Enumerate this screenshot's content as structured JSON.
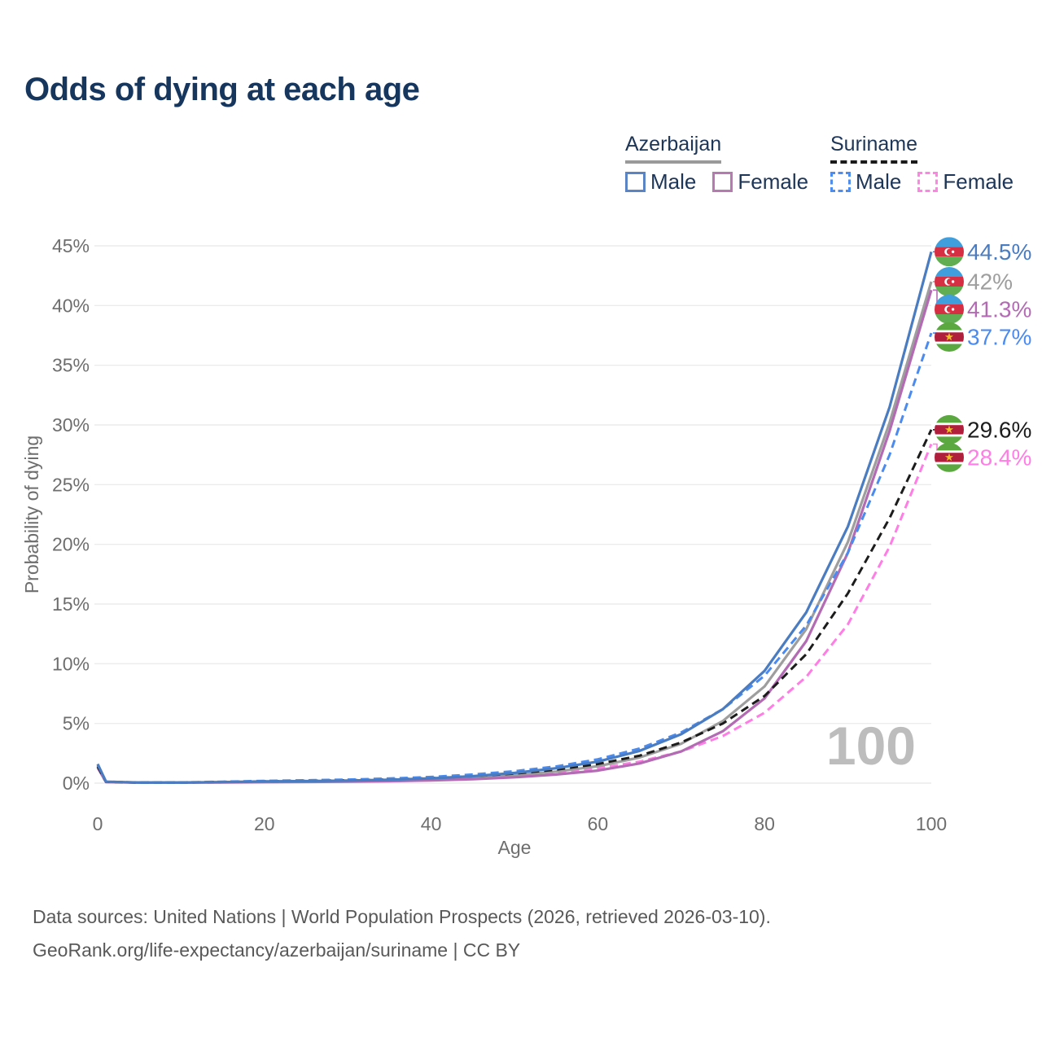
{
  "title": "Odds of dying at each age",
  "watermark": "100",
  "legend": {
    "groups": [
      {
        "name": "Azerbaijan",
        "line_style": "solid",
        "underline_color": "#9a9a9a",
        "items": [
          {
            "label": "Male",
            "color": "#5b84c4",
            "dash": false
          },
          {
            "label": "Female",
            "color": "#b57ab0",
            "dash": false
          }
        ]
      },
      {
        "name": "Suriname",
        "line_style": "dashed",
        "underline_color": "#1a1a1a",
        "items": [
          {
            "label": "Male",
            "color": "#4d8df0",
            "dash": true
          },
          {
            "label": "Female",
            "color": "#ff85e4",
            "dash": true
          }
        ]
      }
    ]
  },
  "footer": {
    "line1": "Data sources: United Nations | World Population Prospects (2026, retrieved 2026-03-10).",
    "line2": "GeoRank.org/life-expectancy/azerbaijan/suriname | CC BY"
  },
  "chart_data": {
    "type": "line",
    "title": "Odds of dying at each age",
    "xlabel": "Age",
    "ylabel": "Probability of dying",
    "xlim": [
      0,
      100
    ],
    "ylim": [
      0,
      45
    ],
    "x_ticks": [
      0,
      20,
      40,
      60,
      80,
      100
    ],
    "y_ticks": [
      "0%",
      "5%",
      "10%",
      "15%",
      "20%",
      "25%",
      "30%",
      "35%",
      "40%",
      "45%"
    ],
    "grid": "horizontal",
    "x": [
      0,
      1,
      5,
      10,
      15,
      20,
      25,
      30,
      35,
      40,
      45,
      50,
      55,
      60,
      65,
      70,
      75,
      80,
      85,
      90,
      95,
      100
    ],
    "series": [
      {
        "name": "Suriname Female",
        "country": "Suriname",
        "flag": "sr",
        "color": "#ff7de5",
        "dash": true,
        "end_label": "28.4%",
        "values": [
          1.3,
          0.1,
          0.045,
          0.045,
          0.08,
          0.11,
          0.14,
          0.18,
          0.23,
          0.31,
          0.44,
          0.62,
          0.88,
          1.25,
          1.8,
          2.65,
          3.95,
          5.9,
          8.9,
          13.3,
          19.8,
          28.4
        ]
      },
      {
        "name": "Azerbaijan (both sexes)",
        "country": "Azerbaijan",
        "flag": "az",
        "color": "#9e9e9e",
        "dash": false,
        "end_label": "42%",
        "values": [
          1.45,
          0.1,
          0.045,
          0.045,
          0.08,
          0.11,
          0.14,
          0.17,
          0.22,
          0.31,
          0.45,
          0.66,
          0.97,
          1.42,
          2.15,
          3.3,
          5.2,
          8.1,
          12.9,
          20.2,
          30.2,
          42.0
        ]
      },
      {
        "name": "Azerbaijan Female",
        "country": "Azerbaijan",
        "flag": "az",
        "color": "#b36cb3",
        "dash": false,
        "end_label": "41.3%",
        "values": [
          1.3,
          0.09,
          0.04,
          0.04,
          0.06,
          0.08,
          0.1,
          0.12,
          0.16,
          0.23,
          0.33,
          0.49,
          0.72,
          1.05,
          1.65,
          2.65,
          4.35,
          7.1,
          11.9,
          19.3,
          29.5,
          41.3
        ]
      },
      {
        "name": "Suriname (both sexes)",
        "country": "Suriname",
        "flag": "sr",
        "color": "#1c1c1c",
        "dash": true,
        "end_label": "29.6%",
        "values": [
          1.4,
          0.11,
          0.05,
          0.05,
          0.1,
          0.15,
          0.19,
          0.24,
          0.31,
          0.42,
          0.58,
          0.8,
          1.13,
          1.6,
          2.3,
          3.4,
          5.0,
          7.3,
          10.8,
          15.9,
          22.2,
          29.6
        ]
      },
      {
        "name": "Suriname Male",
        "country": "Suriname",
        "flag": "sr",
        "color": "#4b8bf0",
        "dash": true,
        "end_label": "37.7%",
        "values": [
          1.55,
          0.12,
          0.06,
          0.06,
          0.12,
          0.19,
          0.24,
          0.3,
          0.39,
          0.52,
          0.72,
          1.0,
          1.4,
          2.0,
          2.9,
          4.25,
          6.2,
          9.0,
          13.2,
          19.3,
          27.5,
          37.7
        ]
      },
      {
        "name": "Azerbaijan Male",
        "country": "Azerbaijan",
        "flag": "az",
        "color": "#4a7cc1",
        "dash": false,
        "end_label": "44.5%",
        "values": [
          1.6,
          0.12,
          0.05,
          0.05,
          0.09,
          0.14,
          0.17,
          0.21,
          0.28,
          0.4,
          0.58,
          0.85,
          1.25,
          1.8,
          2.7,
          4.1,
          6.2,
          9.4,
          14.3,
          21.5,
          31.5,
          44.5
        ]
      }
    ]
  }
}
